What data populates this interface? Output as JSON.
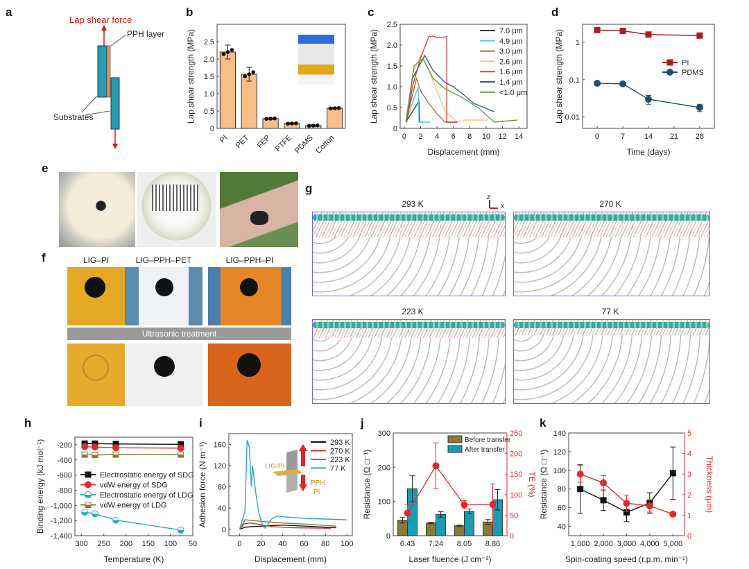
{
  "panel_letters": [
    "a",
    "b",
    "c",
    "d",
    "e",
    "f",
    "g",
    "h",
    "i",
    "j",
    "k"
  ],
  "panel_a": {
    "force_label": "Lap shear force",
    "layer_label": "PPH layer",
    "substrate_label": "Substrates",
    "colors": {
      "substrate": "#2a9bb0",
      "pph": "#e8955a",
      "arrow": "#d11"
    }
  },
  "panel_e": {
    "photos": [
      "flower-photo",
      "sphere-photo",
      "wrist-photo"
    ]
  },
  "panel_f": {
    "titles": [
      "LIG–PI",
      "LIG–PPH–PET",
      "LIG–PPH–PI"
    ],
    "banner": "Ultrasonic treatment"
  },
  "panel_g": {
    "titles": [
      "293 K",
      "270 K",
      "223 K",
      "77 K"
    ],
    "axis_z": "z",
    "axis_x": "x"
  },
  "panel_i_inset": {
    "lig_pi": "LIG/PI",
    "pph": "PPH",
    "pi": "PI"
  },
  "chart_data": [
    {
      "id": "b",
      "type": "bar",
      "ylabel": "Lap shear strength (MPa)",
      "categories": [
        "PI",
        "PET",
        "FEP",
        "PTFE",
        "PDMS",
        "Cotton"
      ],
      "values": [
        2.2,
        1.56,
        0.28,
        0.14,
        0.08,
        0.58
      ],
      "errors": [
        0.2,
        0.2,
        0.02,
        0.02,
        0.02,
        0.02
      ],
      "ylim": [
        0,
        3.0
      ],
      "yticks": [
        "0",
        "0.5",
        "1.0",
        "1.5",
        "2.0",
        "2.5"
      ],
      "color": "#fbbd86"
    },
    {
      "id": "c",
      "type": "line",
      "xlabel": "Displacement (mm)",
      "ylabel": "Lap shear strength (MPa)",
      "xlim": [
        -0.5,
        15
      ],
      "ylim": [
        0,
        2.5
      ],
      "xticks": [
        "0",
        "2",
        "4",
        "6",
        "8",
        "10",
        "12",
        "14"
      ],
      "yticks": [
        "0",
        "0.5",
        "1.0",
        "1.5",
        "2.0",
        "2.5"
      ],
      "legend": "top-right",
      "series": [
        {
          "name": "7.0 μm",
          "color": "#333333",
          "points": [
            [
              0.2,
              0.15
            ],
            [
              1.8,
              0.65
            ],
            [
              1.9,
              0.15
            ],
            [
              2.3,
              0.15
            ]
          ]
        },
        {
          "name": "4.9 μm",
          "color": "#6cc4ee",
          "points": [
            [
              0.2,
              0.15
            ],
            [
              1.7,
              1.0
            ],
            [
              1.8,
              0.15
            ],
            [
              3.2,
              0.15
            ]
          ]
        },
        {
          "name": "3.0 μm",
          "color": "#b5703a",
          "points": [
            [
              0.2,
              0.15
            ],
            [
              1.5,
              1.2
            ],
            [
              2,
              0.9
            ],
            [
              3,
              0.6
            ],
            [
              4,
              0.35
            ],
            [
              5,
              0.15
            ],
            [
              6.5,
              0.15
            ]
          ]
        },
        {
          "name": "2.6 μm",
          "color": "#f2c77a",
          "points": [
            [
              0.2,
              0.15
            ],
            [
              1,
              1.3
            ],
            [
              2,
              1.75
            ],
            [
              3,
              1.4
            ],
            [
              4,
              0.9
            ],
            [
              5,
              0.4
            ],
            [
              6.5,
              0.15
            ],
            [
              7.5,
              0.2
            ],
            [
              10.2,
              0.2
            ]
          ]
        },
        {
          "name": "1.6 μm",
          "color": "#e03a3a",
          "points": [
            [
              0.3,
              0.15
            ],
            [
              1,
              1.0
            ],
            [
              2,
              1.7
            ],
            [
              3,
              2.2
            ],
            [
              3.5,
              2.22
            ],
            [
              4,
              2.18
            ],
            [
              5.2,
              2.2
            ],
            [
              5.2,
              0.15
            ],
            [
              6.5,
              0.15
            ]
          ]
        },
        {
          "name": "1.4 μm",
          "color": "#2f5f8f",
          "points": [
            [
              0.2,
              0.15
            ],
            [
              1,
              1.2
            ],
            [
              2.5,
              1.75
            ],
            [
              3.5,
              1.4
            ],
            [
              5,
              1.1
            ],
            [
              6,
              1.0
            ],
            [
              7,
              0.85
            ],
            [
              8.5,
              0.6
            ],
            [
              11,
              0.4
            ]
          ]
        },
        {
          "name": "<1.0 μm",
          "color": "#6a9a3a",
          "points": [
            [
              0.2,
              0.15
            ],
            [
              1.2,
              1.5
            ],
            [
              2.3,
              1.68
            ],
            [
              3.5,
              1.2
            ],
            [
              5,
              0.95
            ],
            [
              7,
              0.75
            ],
            [
              9,
              0.5
            ],
            [
              11,
              0.15
            ],
            [
              13.8,
              0.2
            ]
          ]
        }
      ]
    },
    {
      "id": "d",
      "type": "line",
      "scale": "log",
      "xlabel": "Time (days)",
      "ylabel": "Lap shear strength (MPa)",
      "xlim": [
        -4,
        32
      ],
      "ylim": [
        0.005,
        3
      ],
      "xticks": [
        "0",
        "7",
        "14",
        "21",
        "28"
      ],
      "yticks": [
        "0.01",
        "0.1",
        "1"
      ],
      "legend": "right",
      "x": [
        0,
        7,
        14,
        28
      ],
      "series": [
        {
          "name": "PI",
          "color": "#b01c1c",
          "marker": "square",
          "values": [
            2.1,
            2.0,
            1.6,
            1.5
          ]
        },
        {
          "name": "PDMS",
          "color": "#1f4e6e",
          "marker": "circle",
          "values": [
            0.08,
            0.077,
            0.03,
            0.018
          ],
          "errors": [
            0.005,
            0.005,
            0.008,
            0.004
          ]
        }
      ]
    },
    {
      "id": "h",
      "type": "line",
      "xlabel": "Temperature (K)",
      "ylabel": "Binding energy (kJ mol⁻¹)",
      "xlim": [
        315,
        50
      ],
      "ylim": [
        -1400,
        -100
      ],
      "xticks": [
        "300",
        "250",
        "200",
        "150",
        "100",
        "50"
      ],
      "yticks": [
        "-200",
        "-400",
        "-600",
        "-800",
        "-1,000",
        "-1,200",
        "-1,400"
      ],
      "legend": "left",
      "x": [
        293,
        270,
        223,
        77
      ],
      "series": [
        {
          "name": "Electrostatic energy of SDG",
          "color": "#111111",
          "marker": "square",
          "values": [
            -185,
            -185,
            -190,
            -195
          ]
        },
        {
          "name": "vdW energy of SDG",
          "color": "#e02a2a",
          "marker": "circle",
          "values": [
            -225,
            -230,
            -240,
            -245
          ]
        },
        {
          "name": "Electrostatic energy of LDG",
          "color": "#2aa7c4",
          "marker": "half-circle",
          "values": [
            -1090,
            -1110,
            -1195,
            -1325
          ]
        },
        {
          "name": "vdW energy of LDG",
          "color": "#8a7a30",
          "marker": "half-square",
          "values": [
            -330,
            -335,
            -330,
            -330
          ]
        }
      ]
    },
    {
      "id": "i",
      "type": "line",
      "xlabel": "Displacement (mm)",
      "ylabel": "Adhesion force (N m⁻¹)",
      "xlim": [
        -10,
        105
      ],
      "ylim": [
        -12,
        180
      ],
      "xticks": [
        "0",
        "20",
        "40",
        "60",
        "80",
        "100"
      ],
      "yticks": [
        "0",
        "40",
        "80",
        "120",
        "160"
      ],
      "legend": "top-right",
      "series": [
        {
          "name": "293 K",
          "color": "#111111",
          "points": [
            [
              0,
              0
            ],
            [
              5,
              4
            ],
            [
              20,
              6
            ],
            [
              40,
              8
            ],
            [
              60,
              6
            ],
            [
              80,
              4
            ],
            [
              90,
              3
            ]
          ]
        },
        {
          "name": "270 K",
          "color": "#e02a2a",
          "points": [
            [
              0,
              0
            ],
            [
              4,
              10
            ],
            [
              10,
              12
            ],
            [
              30,
              5
            ],
            [
              50,
              3
            ],
            [
              85,
              2
            ]
          ]
        },
        {
          "name": "223 K",
          "color": "#8a7a30",
          "points": [
            [
              0,
              0
            ],
            [
              5,
              18
            ],
            [
              20,
              15
            ],
            [
              40,
              12
            ],
            [
              60,
              10
            ],
            [
              90,
              6
            ]
          ]
        },
        {
          "name": "77 K",
          "color": "#2aa7c4",
          "points": [
            [
              0,
              0
            ],
            [
              5,
              35
            ],
            [
              7,
              168
            ],
            [
              9,
              155
            ],
            [
              11,
              80
            ],
            [
              12,
              120
            ],
            [
              15,
              70
            ],
            [
              18,
              30
            ],
            [
              22,
              5
            ],
            [
              24,
              2
            ],
            [
              30,
              20
            ],
            [
              35,
              25
            ],
            [
              50,
              22
            ],
            [
              70,
              20
            ],
            [
              100,
              18
            ]
          ]
        }
      ]
    },
    {
      "id": "j",
      "type": "bar",
      "xlabel": "Laser fluence (J cm⁻²)",
      "ylabel": "Resistance (Ω □⁻¹)",
      "y2label": "TE (%)",
      "categories": [
        "6.43",
        "7.24",
        "8.05",
        "8.86"
      ],
      "ylim": [
        0,
        300
      ],
      "y2lim": [
        0,
        250
      ],
      "yticks": [
        "0",
        "100",
        "200",
        "300"
      ],
      "y2ticks": [
        "0",
        "50",
        "100",
        "150",
        "200",
        "250"
      ],
      "legend": "top-right",
      "series": [
        {
          "name": "Before transfer",
          "color": "#8a7a35",
          "values": [
            45,
            37,
            29,
            40
          ],
          "errors": [
            8,
            2,
            2,
            7
          ]
        },
        {
          "name": "After transfer",
          "color": "#1a9cb5",
          "values": [
            137,
            62,
            71,
            105
          ],
          "errors": [
            38,
            8,
            7,
            30
          ]
        },
        {
          "name": "TE",
          "axis": "right",
          "color": "#e02a2a",
          "values": [
            55,
            170,
            75,
            76
          ],
          "errors": [
            20,
            56,
            10,
            50
          ]
        }
      ]
    },
    {
      "id": "k",
      "type": "line",
      "xlabel": "Spin-coating speed (r.p.m. min⁻¹)",
      "ylabel": "Resistance (Ω □⁻¹)",
      "y2label": "Thickness (μm)",
      "x": [
        1000,
        2000,
        3000,
        4000,
        5000
      ],
      "xlim": [
        500,
        5500
      ],
      "ylim": [
        30,
        140
      ],
      "y2lim": [
        0,
        5
      ],
      "xticks": [
        "1,000",
        "2,000",
        "3,000",
        "4,000",
        "5,000"
      ],
      "yticks": [
        "40",
        "60",
        "80",
        "100",
        "120",
        "140"
      ],
      "y2ticks": [
        "0",
        "1",
        "2",
        "3",
        "4",
        "5"
      ],
      "series": [
        {
          "name": "Resistance",
          "color": "#111111",
          "marker": "square",
          "values": [
            80,
            68,
            55,
            65,
            97
          ],
          "errors": [
            26,
            11,
            10,
            11,
            28
          ]
        },
        {
          "name": "Thickness",
          "axis": "right",
          "color": "#e02a2a",
          "marker": "circle",
          "values": [
            3.0,
            2.57,
            1.58,
            1.45,
            1.05
          ],
          "errors": [
            0.4,
            0.35,
            0.4,
            0.3,
            0.0
          ]
        }
      ]
    }
  ]
}
